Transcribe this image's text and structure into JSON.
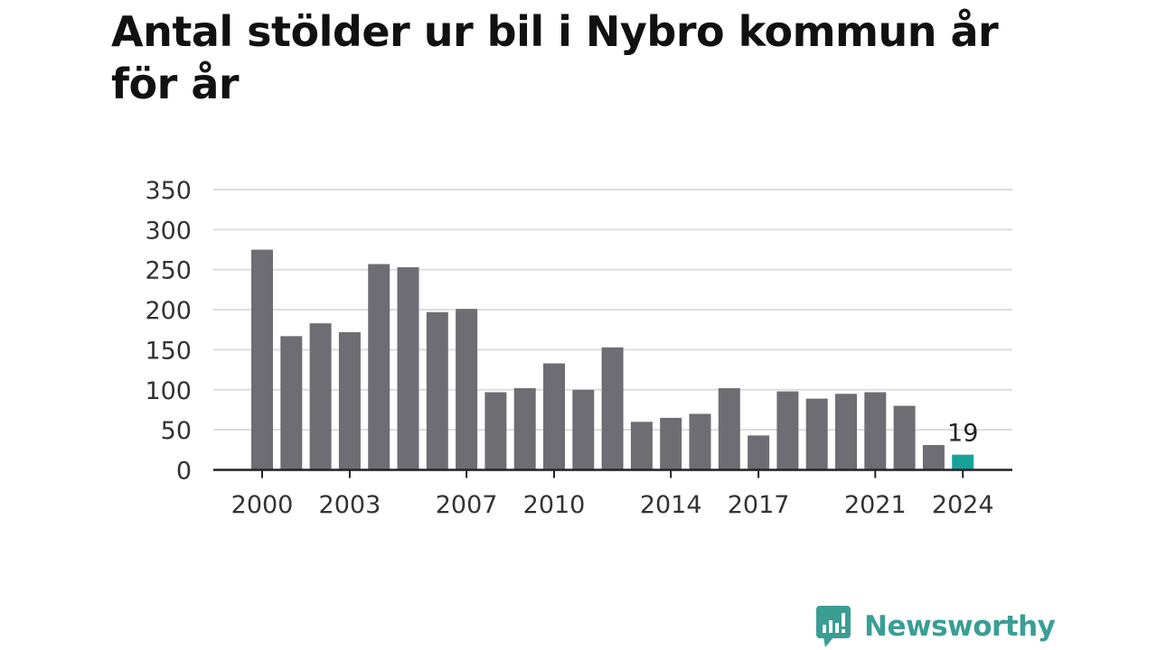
{
  "title": "Antal stölder ur bil i Nybro kommun år för år",
  "brand": {
    "name": "Newsworthy",
    "color": "#3a9e95",
    "icon": "bar-chart-speech-bubble-icon"
  },
  "chart_data": {
    "type": "bar",
    "title": "Antal stölder ur bil i Nybro kommun år för år",
    "xlabel": "",
    "ylabel": "",
    "ylim": [
      0,
      350
    ],
    "yticks": [
      0,
      50,
      100,
      150,
      200,
      250,
      300,
      350
    ],
    "grid": true,
    "categories": [
      "2000",
      "2001",
      "2002",
      "2003",
      "2004",
      "2005",
      "2006",
      "2007",
      "2008",
      "2009",
      "2010",
      "2011",
      "2012",
      "2013",
      "2014",
      "2015",
      "2016",
      "2017",
      "2018",
      "2019",
      "2020",
      "2021",
      "2022",
      "2023",
      "2024"
    ],
    "x_tick_labels": [
      "2000",
      "2003",
      "2007",
      "2010",
      "2014",
      "2017",
      "2021",
      "2024"
    ],
    "values": [
      275,
      167,
      183,
      172,
      257,
      253,
      197,
      201,
      97,
      102,
      133,
      100,
      153,
      60,
      65,
      70,
      102,
      43,
      98,
      89,
      95,
      97,
      80,
      31,
      19
    ],
    "bar_color": "#6e6d73",
    "highlight_color": "#17a399",
    "highlight_index": 24,
    "data_labels": [
      {
        "category": "2024",
        "text": "19"
      }
    ]
  }
}
